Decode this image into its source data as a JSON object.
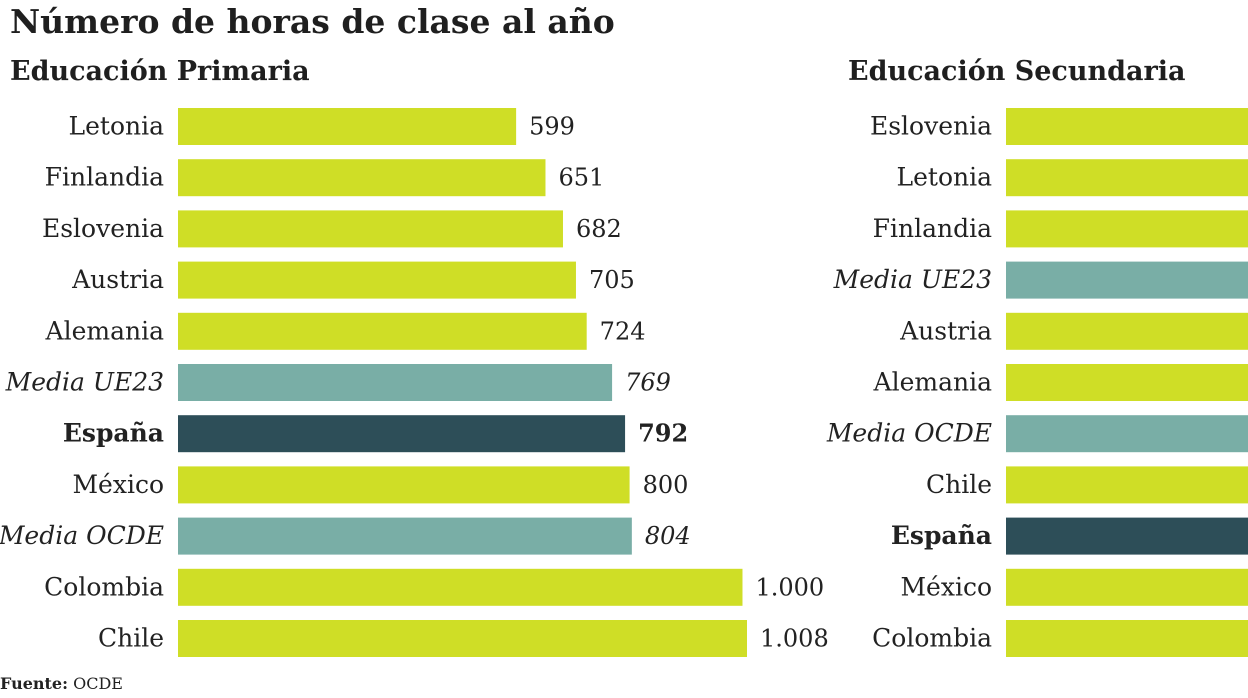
{
  "title": "Número de horas de clase al año",
  "source": {
    "label": "Fuente:",
    "value": "OCDE"
  },
  "colors": {
    "country": "#cfde26",
    "average": "#79aea6",
    "spain": "#2d4e58"
  },
  "chart_data": [
    {
      "type": "bar",
      "orientation": "horizontal",
      "title": "Educación Primaria",
      "categories": [
        "Letonia",
        "Finlandia",
        "Eslovenia",
        "Austria",
        "Alemania",
        "Media UE23",
        "España",
        "México",
        "Media OCDE",
        "Colombia",
        "Chile"
      ],
      "values": [
        599,
        651,
        682,
        705,
        724,
        769,
        792,
        800,
        804,
        1000,
        1008
      ],
      "value_labels": [
        "599",
        "651",
        "682",
        "705",
        "724",
        "769",
        "792",
        "800",
        "804",
        "1.000",
        "1.008"
      ],
      "kinds": [
        "country",
        "country",
        "country",
        "country",
        "country",
        "average",
        "spain",
        "country",
        "average",
        "country",
        "country"
      ],
      "xlim": [
        0,
        1008
      ]
    },
    {
      "type": "bar",
      "orientation": "horizontal",
      "title": "Educación Secundaria",
      "categories": [
        "Eslovenia",
        "Letonia",
        "Finlandia",
        "Media UE23",
        "Austria",
        "Alemania",
        "Media OCDE",
        "Chile",
        "España",
        "México",
        "Colombia"
      ],
      "kinds": [
        "country",
        "country",
        "country",
        "average",
        "country",
        "country",
        "average",
        "country",
        "spain",
        "country",
        "country"
      ]
    }
  ]
}
